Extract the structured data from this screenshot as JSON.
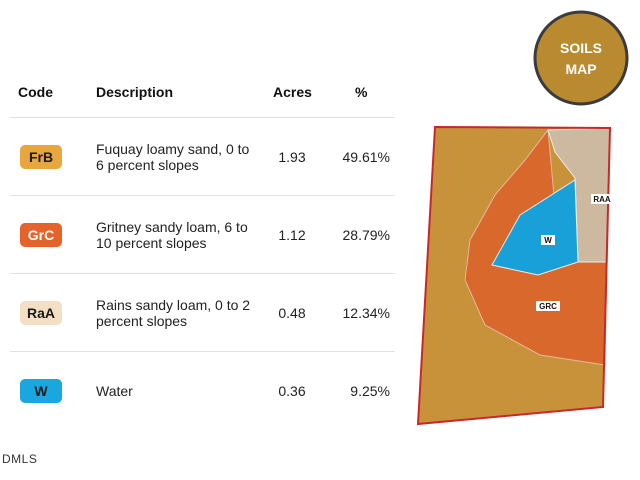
{
  "badge": {
    "line1": "SOILS",
    "line2": "MAP"
  },
  "table": {
    "columns": [
      "Code",
      "Description",
      "Acres",
      "%"
    ],
    "rows": [
      {
        "code": "FrB",
        "description": "Fuquay loamy sand, 0 to 6 percent slopes",
        "acres": "1.93",
        "percent": "49.61%",
        "color": "#e8a63f",
        "text_color": "#1a1a1a"
      },
      {
        "code": "GrC",
        "description": "Gritney sandy loam, 6 to 10 percent slopes",
        "acres": "1.12",
        "percent": "28.79%",
        "color": "#e5632a",
        "text_color": "#ffffff"
      },
      {
        "code": "RaA",
        "description": "Rains sandy loam, 0 to 2 percent slopes",
        "acres": "0.48",
        "percent": "12.34%",
        "color": "#f3dfc4",
        "text_color": "#1a1a1a"
      },
      {
        "code": "W",
        "description": "Water",
        "acres": "0.36",
        "percent": "9.25%",
        "color": "#1aa6e0",
        "text_color": "#1a1a1a"
      }
    ]
  },
  "map": {
    "labels": [
      "RAA",
      "W",
      "GRC"
    ]
  },
  "footer": "DMLS"
}
